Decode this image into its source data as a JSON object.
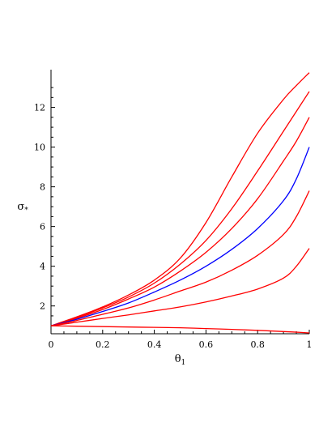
{
  "chart_data": {
    "type": "line",
    "xlabel": "θ",
    "xlabel_sub": "1",
    "ylabel": "σ",
    "ylabel_sub": "*",
    "xlim": [
      0,
      1
    ],
    "ylim": [
      0.6,
      13.9
    ],
    "x_ticks": [
      0,
      0.2,
      0.4,
      0.6,
      0.8,
      1
    ],
    "x_tick_labels": [
      "0",
      "0.2",
      "0.4",
      "0.6",
      "0.8",
      "1"
    ],
    "y_ticks": [
      2,
      4,
      6,
      8,
      10,
      12
    ],
    "y_tick_labels": [
      "2",
      "4",
      "6",
      "8",
      "10",
      "12"
    ],
    "grid": false,
    "colors": {
      "red": "#ff0000",
      "blue": "#0000ff"
    },
    "x": [
      0,
      0.1,
      0.2,
      0.3,
      0.4,
      0.5,
      0.6,
      0.7,
      0.8,
      0.9,
      0.95,
      1.0
    ],
    "series": [
      {
        "color": "#ff0000",
        "values": [
          1.0,
          1.45,
          1.95,
          2.55,
          3.3,
          4.4,
          6.2,
          8.5,
          10.7,
          12.4,
          13.1,
          13.75
        ]
      },
      {
        "color": "#ff0000",
        "values": [
          1.0,
          1.42,
          1.9,
          2.45,
          3.15,
          4.1,
          5.3,
          6.9,
          8.8,
          10.8,
          11.8,
          12.8
        ]
      },
      {
        "color": "#ff0000",
        "values": [
          1.0,
          1.38,
          1.82,
          2.35,
          2.95,
          3.75,
          4.7,
          5.9,
          7.4,
          9.3,
          10.3,
          11.5
        ]
      },
      {
        "color": "#0000ff",
        "values": [
          1.0,
          1.33,
          1.72,
          2.15,
          2.7,
          3.3,
          4.0,
          4.85,
          5.9,
          7.3,
          8.4,
          10.0
        ]
      },
      {
        "color": "#ff0000",
        "values": [
          1.0,
          1.27,
          1.58,
          1.9,
          2.3,
          2.75,
          3.2,
          3.8,
          4.55,
          5.6,
          6.5,
          7.8
        ]
      },
      {
        "color": "#ff0000",
        "values": [
          1.0,
          1.18,
          1.37,
          1.55,
          1.75,
          1.95,
          2.2,
          2.5,
          2.85,
          3.4,
          4.0,
          4.9
        ]
      },
      {
        "color": "#ff0000",
        "values": [
          1.0,
          0.98,
          0.96,
          0.94,
          0.92,
          0.9,
          0.86,
          0.82,
          0.77,
          0.71,
          0.68,
          0.64
        ]
      }
    ]
  }
}
